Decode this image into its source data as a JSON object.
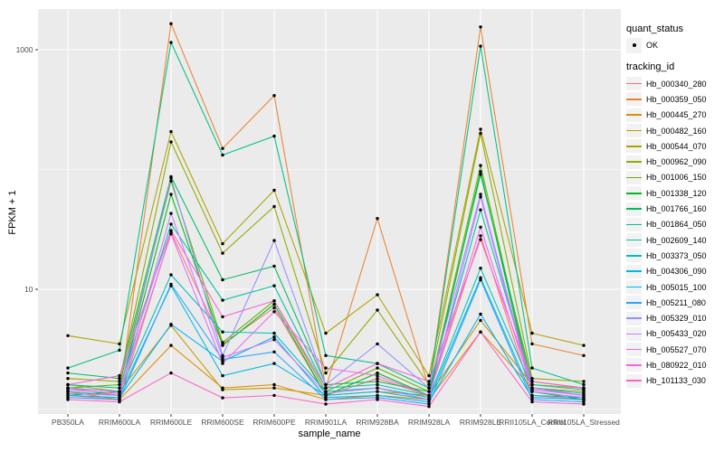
{
  "chart_data": {
    "type": "line",
    "title": "",
    "xlabel": "sample_name",
    "ylabel": "FPKM + 1",
    "y_scale": "log10",
    "ylim": [
      0.9,
      2200
    ],
    "grid": true,
    "legend_position": "right",
    "panel_bg": "#EBEBEB",
    "grid_color": "#FFFFFF",
    "point_color": "#000000",
    "axis_text_color": "#4D4D4D",
    "y_ticks": [
      {
        "label": "1000",
        "value": 1000
      },
      {
        "label": "10",
        "value": 10
      }
    ],
    "y_minor": [
      1,
      100
    ],
    "categories": [
      "PB350LA",
      "RRIM600LA",
      "RRIM600LE",
      "RRIM600SE",
      "RRIM600PE",
      "RRIM901LA",
      "RRIM928BA",
      "RRIM928LA",
      "RRIM928LE",
      "RRII105LA_Control",
      "RRII105LA_Stressed"
    ],
    "series": [
      {
        "name": "Hb_000340_280",
        "color": "#F8766D",
        "values": [
          1.3,
          1.2,
          30,
          3.5,
          7.0,
          1.3,
          1.8,
          1.3,
          28,
          1.3,
          1.2
        ]
      },
      {
        "name": "Hb_000359_050",
        "color": "#EA8331",
        "values": [
          1.5,
          1.3,
          1650,
          150,
          414,
          1.5,
          39,
          1.5,
          1550,
          3.5,
          2.8
        ]
      },
      {
        "name": "Hb_000445_270",
        "color": "#DB8E00",
        "values": [
          1.4,
          1.2,
          3.4,
          1.5,
          1.6,
          1.2,
          1.3,
          1.2,
          4.4,
          1.5,
          1.4
        ]
      },
      {
        "name": "Hb_000482_160",
        "color": "#C79800",
        "values": [
          1.6,
          1.4,
          5.0,
          1.45,
          1.5,
          1.3,
          1.4,
          1.3,
          5.5,
          1.6,
          1.5
        ]
      },
      {
        "name": "Hb_000544_070",
        "color": "#AEA200",
        "values": [
          4.1,
          3.5,
          207,
          24,
          67,
          4.3,
          9.0,
          1.9,
          217,
          4.3,
          3.4
        ]
      },
      {
        "name": "Hb_000962_090",
        "color": "#8FAA00",
        "values": [
          1.8,
          1.7,
          170,
          20,
          49,
          2.0,
          6.7,
          1.6,
          200,
          1.8,
          1.7
        ]
      },
      {
        "name": "Hb_001006_150",
        "color": "#64B200",
        "values": [
          1.5,
          1.6,
          80,
          3.6,
          8.0,
          1.4,
          2.2,
          1.4,
          108,
          1.5,
          1.3
        ]
      },
      {
        "name": "Hb_001338_120",
        "color": "#00B81B",
        "values": [
          1.3,
          1.4,
          62,
          3.4,
          7.5,
          1.3,
          2.0,
          1.3,
          96,
          1.4,
          1.2
        ]
      },
      {
        "name": "Hb_001766_160",
        "color": "#00BD5C",
        "values": [
          2.0,
          1.8,
          87,
          12,
          15.6,
          1.6,
          1.7,
          1.4,
          91,
          1.7,
          1.5
        ]
      },
      {
        "name": "Hb_001864_050",
        "color": "#00C085",
        "values": [
          2.2,
          3.1,
          1150,
          132,
          190,
          2.8,
          2.4,
          1.5,
          1070,
          2.2,
          1.6
        ]
      },
      {
        "name": "Hb_002609_140",
        "color": "#00C1A7",
        "values": [
          1.6,
          1.5,
          35,
          8.1,
          10.7,
          1.5,
          1.6,
          1.3,
          46,
          1.6,
          1.45
        ]
      },
      {
        "name": "Hb_003373_050",
        "color": "#00BFC4",
        "values": [
          1.5,
          1.4,
          13.2,
          4.4,
          4.3,
          1.4,
          1.5,
          1.25,
          15,
          1.5,
          1.35
        ]
      },
      {
        "name": "Hb_004306_090",
        "color": "#00BADE",
        "values": [
          1.4,
          1.3,
          10.7,
          1.9,
          2.4,
          1.3,
          1.4,
          1.2,
          12.5,
          1.3,
          1.25
        ]
      },
      {
        "name": "Hb_005015_100",
        "color": "#00B2F3",
        "values": [
          1.3,
          1.25,
          5.1,
          2.5,
          4.0,
          1.25,
          1.3,
          1.15,
          6.2,
          1.25,
          1.2
        ]
      },
      {
        "name": "Hb_005211_080",
        "color": "#29A3FF",
        "values": [
          1.25,
          1.2,
          11,
          2.6,
          3.0,
          1.2,
          1.25,
          1.1,
          12,
          1.2,
          1.15
        ]
      },
      {
        "name": "Hb_005329_010",
        "color": "#9590FF",
        "values": [
          1.5,
          1.4,
          85,
          2.8,
          25.5,
          1.6,
          3.5,
          1.5,
          62,
          1.5,
          1.3
        ]
      },
      {
        "name": "Hb_005433_020",
        "color": "#C77CFF",
        "values": [
          1.35,
          1.3,
          43,
          2.7,
          3.8,
          1.35,
          1.5,
          1.2,
          59,
          1.4,
          1.25
        ]
      },
      {
        "name": "Hb_005527_070",
        "color": "#E76BF3",
        "values": [
          1.45,
          1.35,
          29,
          2.4,
          6.5,
          2.2,
          1.9,
          1.3,
          33,
          1.45,
          1.3
        ]
      },
      {
        "name": "Hb_080922_010",
        "color": "#FA62DB",
        "values": [
          1.6,
          1.9,
          31,
          5.9,
          8.0,
          1.5,
          2.4,
          1.7,
          26,
          1.7,
          1.5
        ]
      },
      {
        "name": "Hb_101133_030",
        "color": "#FF61C9",
        "values": [
          1.2,
          1.15,
          2.0,
          1.24,
          1.3,
          1.1,
          1.2,
          1.05,
          4.4,
          1.15,
          1.1
        ]
      }
    ]
  },
  "legend": {
    "quant_status": {
      "title": "quant_status",
      "value": "OK"
    },
    "tracking": {
      "title": "tracking_id"
    }
  }
}
